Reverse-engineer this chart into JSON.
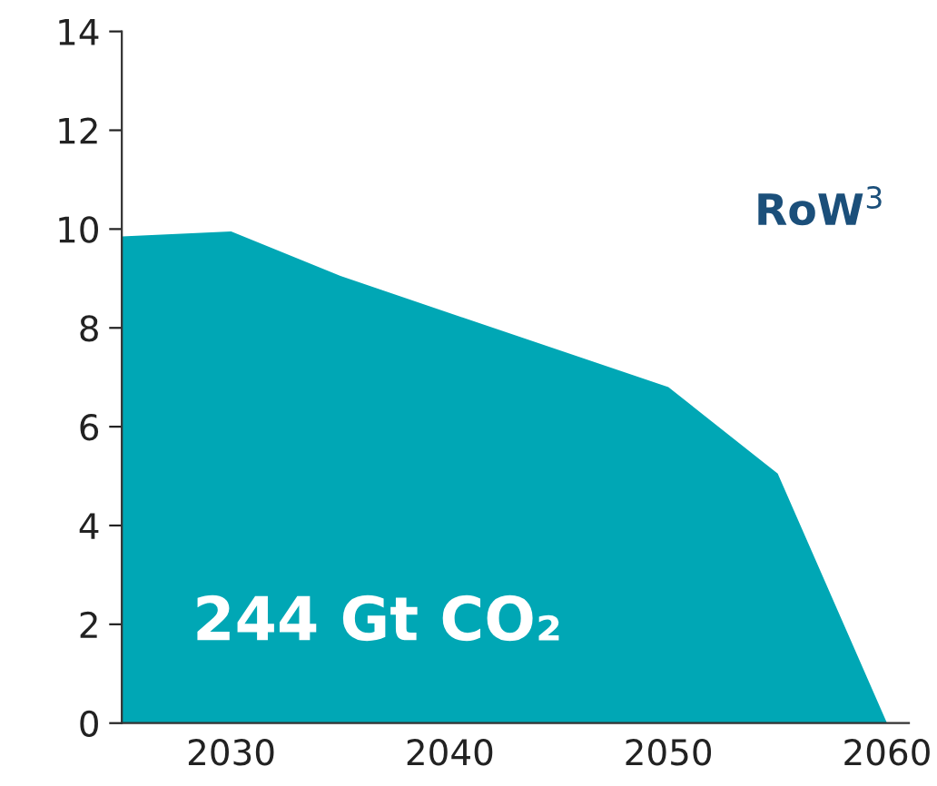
{
  "chart_data": {
    "type": "area",
    "x": [
      2025,
      2030,
      2035,
      2050,
      2055,
      2060
    ],
    "series": [
      {
        "color": "#00a7b5",
        "values": [
          9.85,
          9.95,
          9.05,
          6.8,
          5.05,
          0
        ]
      }
    ],
    "xlim": [
      2025,
      2061
    ],
    "ylim": [
      0,
      14
    ],
    "xticks": [
      2030,
      2040,
      2050,
      2060
    ],
    "yticks": [
      0,
      2,
      4,
      6,
      8,
      10,
      12,
      14
    ],
    "annotations": [
      "RoW$^{3}$",
      "244 Gt CO₂"
    ],
    "grid": false,
    "legend": false
  }
}
